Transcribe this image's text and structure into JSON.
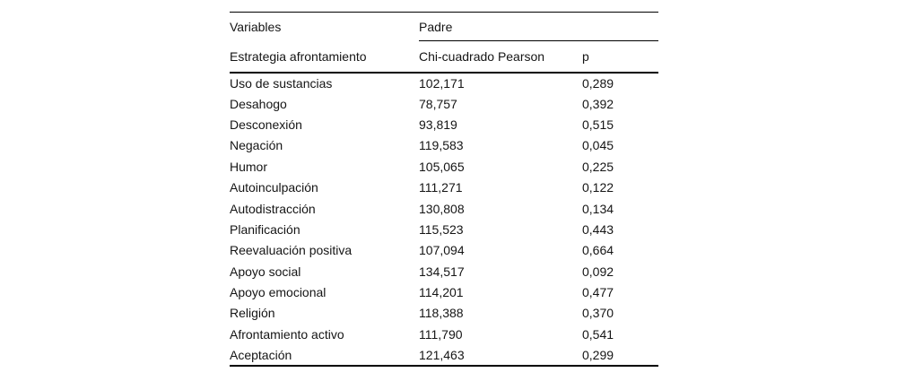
{
  "table": {
    "top_header": {
      "variables": "Variables",
      "group": "Padre"
    },
    "columns": {
      "strategy": "Estrategia afrontamiento",
      "chi": "Chi-cuadrado Pearson",
      "p": "p"
    },
    "rows": [
      {
        "label": "Uso de sustancias",
        "chi": "102,171",
        "p": "0,289"
      },
      {
        "label": "Desahogo",
        "chi": "78,757",
        "p": "0,392"
      },
      {
        "label": "Desconexión",
        "chi": "93,819",
        "p": "0,515"
      },
      {
        "label": "Negación",
        "chi": "119,583",
        "p": "0,045"
      },
      {
        "label": "Humor",
        "chi": "105,065",
        "p": "0,225"
      },
      {
        "label": "Autoinculpación",
        "chi": "111,271",
        "p": "0,122"
      },
      {
        "label": "Autodistracción",
        "chi": "130,808",
        "p": "0,134"
      },
      {
        "label": "Planificación",
        "chi": "115,523",
        "p": "0,443"
      },
      {
        "label": "Reevaluación positiva",
        "chi": "107,094",
        "p": "0,664"
      },
      {
        "label": "Apoyo social",
        "chi": "134,517",
        "p": "0,092"
      },
      {
        "label": "Apoyo emocional",
        "chi": "114,201",
        "p": "0,477"
      },
      {
        "label": "Religión",
        "chi": "118,388",
        "p": "0,370"
      },
      {
        "label": "Afrontamiento activo",
        "chi": "111,790",
        "p": "0,541"
      },
      {
        "label": "Aceptación",
        "chi": "121,463",
        "p": "0,299"
      }
    ]
  },
  "colors": {
    "text": "#151515",
    "rule": "#000000",
    "background": "#ffffff"
  }
}
